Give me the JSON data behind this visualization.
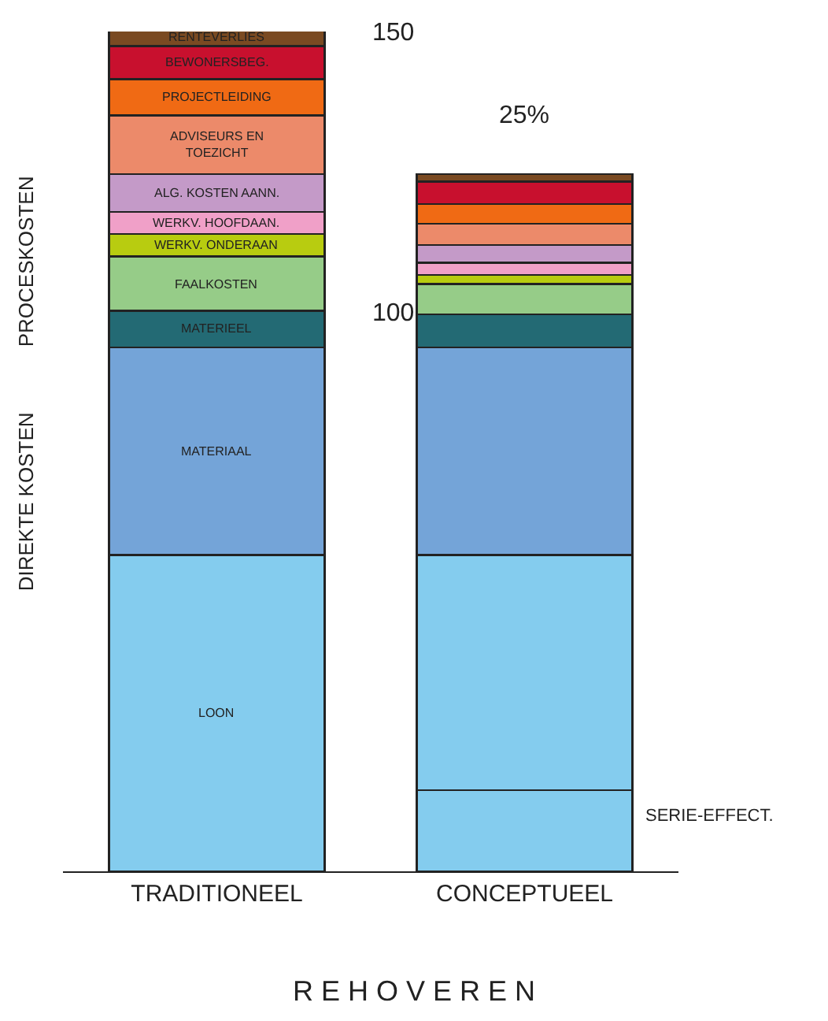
{
  "chart_data": {
    "type": "bar",
    "stacked": true,
    "title": "R E H O V E R E N",
    "categories": [
      "TRADITIONEEL",
      "CONCEPTUEEL"
    ],
    "series": [
      {
        "name": "LOON",
        "color": "#84ccee",
        "values": [
          56.5,
          14.5
        ]
      },
      {
        "color": "#84ccee",
        "values": [
          null,
          42
        ]
      },
      {
        "name": "MATERIAAL",
        "color": "#74a4d8",
        "values": [
          37.1,
          37.1
        ]
      },
      {
        "name": "MATERIEEL",
        "color": "#236a74",
        "values": [
          6.5,
          5.9
        ]
      },
      {
        "name": "FAALKOSTEN",
        "color": "#96cc88",
        "values": [
          9.7,
          5.4
        ]
      },
      {
        "name": "WERKV. ONDERAAN",
        "color": "#b8cc10",
        "values": [
          4,
          1.6
        ]
      },
      {
        "name": "WERKV. HOOFDAAN.",
        "color": "#f0a0c8",
        "values": [
          4,
          2.2
        ]
      },
      {
        "name": "ALG. KOSTEN AANN.",
        "color": "#c49ac8",
        "values": [
          6.7,
          3.2
        ]
      },
      {
        "name": "ADVISEURS EN TOEZICHT",
        "color": "#ec8a6a",
        "values": [
          10.5,
          3.8
        ]
      },
      {
        "name": "PROJECTLEIDING",
        "color": "#f06a14",
        "values": [
          6.5,
          3.5
        ]
      },
      {
        "name": "BEWONERSBEG.",
        "color": "#c8102e",
        "values": [
          5.9,
          4
        ]
      },
      {
        "name": "RENTEVERLIES",
        "color": "#7a4a22",
        "values": [
          3,
          1.3
        ]
      }
    ],
    "ylim": [
      0,
      150
    ],
    "yticks": [
      100,
      150
    ],
    "legend": false,
    "annotations": [
      "PROCESKOSTEN",
      "DIREKTE KOSTEN",
      "25%",
      "SERIE-EFFECT."
    ]
  }
}
